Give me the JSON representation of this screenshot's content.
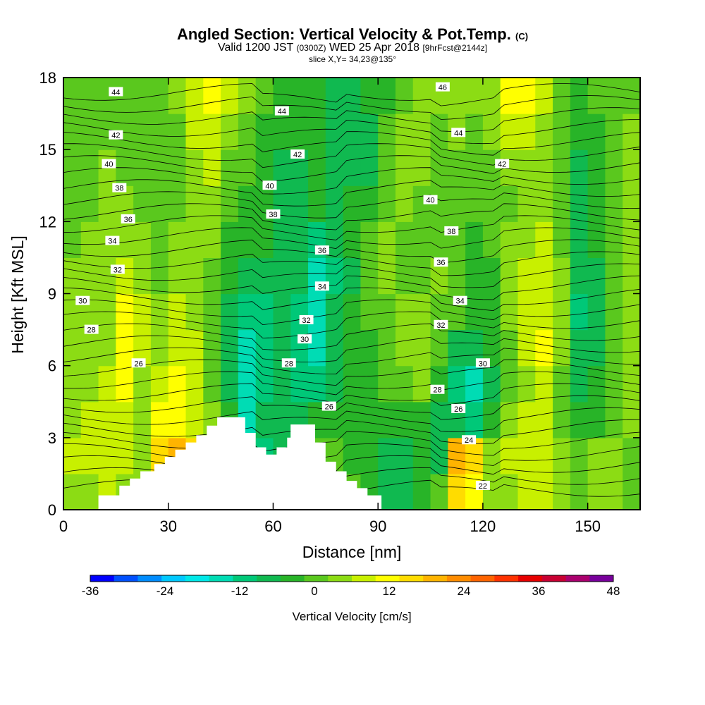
{
  "title": {
    "main": "Angled Section: Vertical Velocity & Pot.Temp.",
    "unit": "(C)",
    "valid_prefix": "Valid 1200 JST",
    "valid_z": "(0300Z)",
    "valid_date": "WED 25 Apr 2018",
    "forecast": "[9hrFcst@2144z]",
    "slice": "slice X,Y= 34,23@135°"
  },
  "colors": {
    "background": "#ffffff",
    "terrain": "#ffffff",
    "isentrope": "#000000"
  },
  "chart_data": {
    "type": "heatmap",
    "xlabel": "Distance [nm]",
    "ylabel": "Height [Kft MSL]",
    "xlim": [
      0,
      165
    ],
    "ylim": [
      0,
      18
    ],
    "x_ticks": [
      0,
      30,
      60,
      90,
      120,
      150
    ],
    "y_ticks": [
      0,
      3,
      6,
      9,
      12,
      15,
      18
    ],
    "colorbar": {
      "label": "Vertical Velocity [cm/s]",
      "ticks": [
        -36,
        -24,
        -12,
        0,
        12,
        24,
        36,
        48
      ],
      "bounds": [
        -36,
        -32,
        -28,
        -24,
        -20,
        -16,
        -12,
        -8,
        -4,
        0,
        4,
        8,
        12,
        16,
        20,
        24,
        28,
        32,
        36,
        40,
        44,
        48
      ],
      "colors": [
        "#0000ff",
        "#0050ff",
        "#008cff",
        "#00c8ff",
        "#00e8e8",
        "#00dcb4",
        "#00c878",
        "#10b950",
        "#28b428",
        "#5ac81e",
        "#8cdc14",
        "#c8f000",
        "#ffff00",
        "#ffdc00",
        "#ffb400",
        "#ff8c00",
        "#ff6400",
        "#ff3200",
        "#e60000",
        "#c80032",
        "#aa006e",
        "#78009b"
      ]
    },
    "velocity_cells": {
      "comment_note": "",
      "x_bins": [
        0,
        5,
        10,
        15,
        20,
        25,
        30,
        35,
        40,
        45,
        50,
        55,
        60,
        65,
        70,
        75,
        80,
        85,
        90,
        95,
        100,
        105,
        110,
        115,
        120,
        125,
        130,
        135,
        140,
        145,
        150,
        155,
        160
      ],
      "z_bins": [
        0,
        1.5,
        3,
        4.5,
        6,
        7.5,
        9,
        10.5,
        12,
        13.5,
        15,
        16.5
      ],
      "w": [
        [
          6,
          6,
          8,
          6,
          4,
          14,
          20,
          16,
          12,
          4,
          0,
          -4,
          -6,
          -4,
          0,
          2,
          0,
          -2,
          -6,
          -6,
          -2,
          2,
          18,
          14,
          4,
          6,
          8,
          10,
          4,
          2,
          6,
          4,
          2
        ],
        [
          8,
          10,
          10,
          8,
          6,
          16,
          22,
          18,
          12,
          2,
          -6,
          -10,
          -6,
          -2,
          2,
          0,
          -2,
          -4,
          -6,
          -8,
          -4,
          -6,
          20,
          16,
          6,
          8,
          10,
          10,
          6,
          2,
          4,
          4,
          2
        ],
        [
          6,
          8,
          10,
          8,
          4,
          12,
          14,
          10,
          6,
          -2,
          -14,
          -8,
          -6,
          -6,
          -4,
          -2,
          -2,
          -4,
          -4,
          -4,
          -2,
          -6,
          -8,
          -10,
          -4,
          4,
          8,
          10,
          2,
          -4,
          -2,
          2,
          4
        ],
        [
          4,
          6,
          8,
          12,
          6,
          10,
          12,
          8,
          2,
          -6,
          -16,
          -10,
          -8,
          -10,
          -12,
          -6,
          -4,
          -2,
          0,
          2,
          4,
          -4,
          -10,
          -14,
          -6,
          2,
          6,
          10,
          2,
          -6,
          -4,
          2,
          4
        ],
        [
          4,
          6,
          6,
          12,
          8,
          6,
          10,
          8,
          0,
          -8,
          -14,
          -10,
          -8,
          -12,
          -16,
          -8,
          -4,
          -2,
          2,
          4,
          6,
          0,
          -6,
          -8,
          -4,
          2,
          8,
          12,
          4,
          -8,
          -6,
          0,
          4
        ],
        [
          4,
          4,
          6,
          12,
          10,
          4,
          8,
          6,
          0,
          -6,
          -12,
          -10,
          -8,
          -10,
          -16,
          -8,
          -4,
          0,
          2,
          4,
          6,
          2,
          0,
          -4,
          -2,
          4,
          8,
          10,
          4,
          -10,
          -8,
          0,
          4
        ],
        [
          4,
          4,
          4,
          8,
          6,
          2,
          6,
          6,
          2,
          -4,
          -8,
          -6,
          -8,
          -8,
          -14,
          -10,
          -6,
          0,
          4,
          2,
          2,
          4,
          0,
          -4,
          -2,
          4,
          8,
          10,
          4,
          -8,
          -6,
          0,
          4
        ],
        [
          2,
          4,
          4,
          6,
          4,
          2,
          4,
          6,
          4,
          -2,
          -4,
          -4,
          -6,
          -6,
          -10,
          -8,
          -4,
          0,
          4,
          2,
          0,
          2,
          2,
          -2,
          0,
          4,
          6,
          8,
          2,
          -6,
          -4,
          2,
          4
        ],
        [
          2,
          2,
          4,
          4,
          2,
          0,
          2,
          6,
          6,
          0,
          -2,
          -4,
          -6,
          -6,
          -4,
          -6,
          -4,
          -2,
          2,
          4,
          2,
          0,
          2,
          0,
          0,
          2,
          4,
          6,
          0,
          -8,
          -4,
          2,
          4
        ],
        [
          2,
          2,
          4,
          2,
          0,
          0,
          2,
          6,
          8,
          2,
          0,
          -2,
          -6,
          -6,
          -4,
          -6,
          -8,
          -6,
          0,
          4,
          4,
          0,
          2,
          2,
          2,
          4,
          4,
          6,
          0,
          -6,
          -2,
          2,
          4
        ],
        [
          2,
          2,
          2,
          2,
          0,
          0,
          2,
          8,
          10,
          4,
          2,
          -2,
          -2,
          -4,
          -4,
          -6,
          -8,
          -6,
          0,
          4,
          6,
          2,
          4,
          2,
          4,
          8,
          10,
          6,
          0,
          -4,
          -2,
          2,
          4
        ],
        [
          2,
          2,
          2,
          2,
          0,
          0,
          4,
          10,
          12,
          8,
          4,
          0,
          -2,
          -4,
          -4,
          -6,
          -6,
          -4,
          -2,
          0,
          4,
          4,
          6,
          4,
          6,
          12,
          14,
          8,
          2,
          -2,
          0,
          2,
          2
        ]
      ]
    },
    "isentrope_labels": [
      {
        "text": "44",
        "x": 15,
        "y": 17.4
      },
      {
        "text": "44",
        "x": 62.5,
        "y": 16.6
      },
      {
        "text": "46",
        "x": 108.5,
        "y": 17.6
      },
      {
        "text": "44",
        "x": 113,
        "y": 15.7
      },
      {
        "text": "42",
        "x": 15,
        "y": 15.6
      },
      {
        "text": "42",
        "x": 67,
        "y": 14.8
      },
      {
        "text": "42",
        "x": 125.5,
        "y": 14.4
      },
      {
        "text": "40",
        "x": 13,
        "y": 14.4
      },
      {
        "text": "40",
        "x": 59,
        "y": 13.5
      },
      {
        "text": "40",
        "x": 105,
        "y": 12.9
      },
      {
        "text": "38",
        "x": 16,
        "y": 13.4
      },
      {
        "text": "38",
        "x": 60,
        "y": 12.3
      },
      {
        "text": "38",
        "x": 111,
        "y": 11.6
      },
      {
        "text": "36",
        "x": 18.5,
        "y": 12.1
      },
      {
        "text": "36",
        "x": 74,
        "y": 10.8
      },
      {
        "text": "36",
        "x": 108,
        "y": 10.3
      },
      {
        "text": "34",
        "x": 14,
        "y": 11.2
      },
      {
        "text": "34",
        "x": 74,
        "y": 9.3
      },
      {
        "text": "34",
        "x": 113.5,
        "y": 8.7
      },
      {
        "text": "32",
        "x": 15.5,
        "y": 10.0
      },
      {
        "text": "32",
        "x": 69.5,
        "y": 7.9
      },
      {
        "text": "32",
        "x": 108,
        "y": 7.7
      },
      {
        "text": "30",
        "x": 5.5,
        "y": 8.7
      },
      {
        "text": "30",
        "x": 69,
        "y": 7.1
      },
      {
        "text": "30",
        "x": 120,
        "y": 6.1
      },
      {
        "text": "28",
        "x": 8,
        "y": 7.5
      },
      {
        "text": "28",
        "x": 64.5,
        "y": 6.1
      },
      {
        "text": "28",
        "x": 107,
        "y": 5.0
      },
      {
        "text": "26",
        "x": 21.5,
        "y": 6.1
      },
      {
        "text": "26",
        "x": 76,
        "y": 4.3
      },
      {
        "text": "26",
        "x": 113,
        "y": 4.2
      },
      {
        "text": "24",
        "x": 116,
        "y": 2.9
      },
      {
        "text": "22",
        "x": 120,
        "y": 1.0
      }
    ],
    "terrain": [
      [
        0,
        0
      ],
      [
        10,
        0
      ],
      [
        10,
        0.6
      ],
      [
        16,
        0.6
      ],
      [
        16,
        1.0
      ],
      [
        19,
        1.0
      ],
      [
        19,
        1.3
      ],
      [
        22,
        1.3
      ],
      [
        22,
        1.6
      ],
      [
        26,
        1.6
      ],
      [
        26,
        1.9
      ],
      [
        29,
        1.9
      ],
      [
        29,
        2.2
      ],
      [
        32,
        2.2
      ],
      [
        32,
        2.5
      ],
      [
        35,
        2.5
      ],
      [
        35,
        2.8
      ],
      [
        38,
        2.8
      ],
      [
        38,
        3.1
      ],
      [
        41,
        3.1
      ],
      [
        41,
        3.5
      ],
      [
        44,
        3.5
      ],
      [
        44,
        3.85
      ],
      [
        52,
        3.85
      ],
      [
        52,
        3.2
      ],
      [
        55,
        3.2
      ],
      [
        55,
        2.6
      ],
      [
        58,
        2.6
      ],
      [
        58,
        2.3
      ],
      [
        61,
        2.3
      ],
      [
        61,
        2.6
      ],
      [
        64,
        2.6
      ],
      [
        64,
        3.0
      ],
      [
        65,
        3.0
      ],
      [
        65,
        3.55
      ],
      [
        72,
        3.55
      ],
      [
        72,
        2.8
      ],
      [
        75,
        2.8
      ],
      [
        75,
        2.0
      ],
      [
        78,
        2.0
      ],
      [
        78,
        1.6
      ],
      [
        81,
        1.6
      ],
      [
        81,
        1.2
      ],
      [
        84,
        1.2
      ],
      [
        84,
        0.9
      ],
      [
        87,
        0.9
      ],
      [
        87,
        0.6
      ],
      [
        91,
        0.6
      ],
      [
        91,
        0
      ],
      [
        0,
        0
      ]
    ]
  }
}
